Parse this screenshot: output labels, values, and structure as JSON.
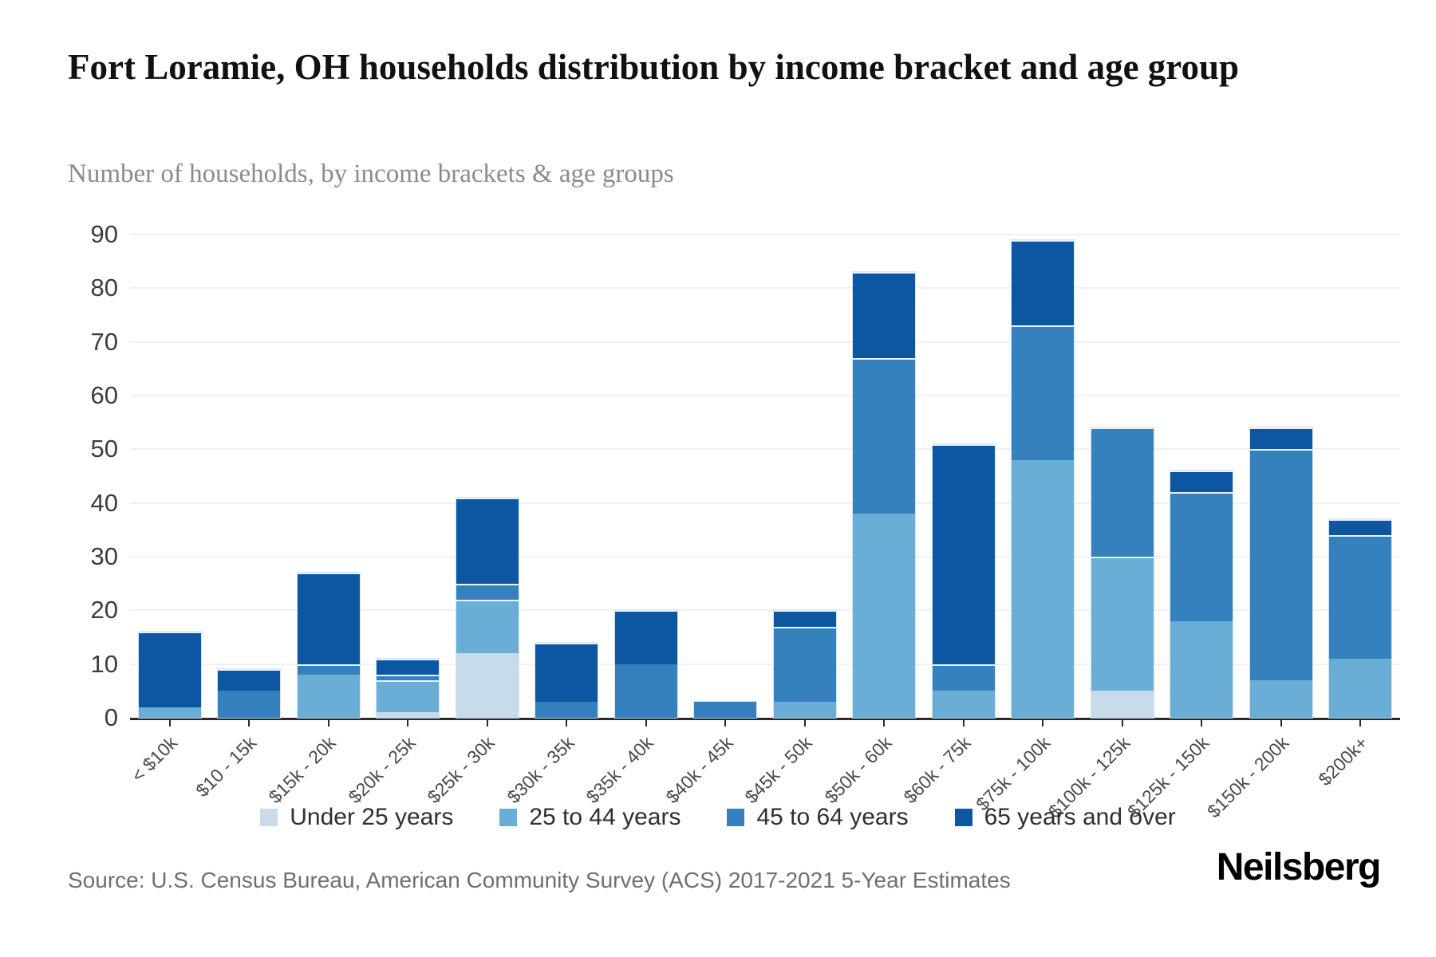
{
  "header": {
    "title": "Fort Loramie, OH households distribution by income bracket and age group",
    "subtitle": "Number of households, by income brackets & age groups"
  },
  "chart_data": {
    "type": "bar",
    "stacked": true,
    "grid": true,
    "legend_position": "bottom",
    "ylim": [
      0,
      90
    ],
    "yticks": [
      0,
      10,
      20,
      30,
      40,
      50,
      60,
      70,
      80,
      90
    ],
    "categories": [
      "< $10k",
      "$10 - 15k",
      "$15k - 20k",
      "$20k - 25k",
      "$25k - 30k",
      "$30k - 35k",
      "$35k - 40k",
      "$40k - 45k",
      "$45k - 50k",
      "$50k - 60k",
      "$60k - 75k",
      "$75k - 100k",
      "$100k - 125k",
      "$125k - 150k",
      "$150k - 200k",
      "$200k+"
    ],
    "series": [
      {
        "name": "Under 25 years",
        "color": "#c7dbea",
        "values": [
          0,
          0,
          0,
          1,
          12,
          0,
          0,
          0,
          0,
          0,
          0,
          0,
          5,
          0,
          0,
          0
        ]
      },
      {
        "name": "25 to 44 years",
        "color": "#6aadd6",
        "values": [
          2,
          0,
          8,
          6,
          10,
          0,
          0,
          0,
          3,
          38,
          5,
          48,
          25,
          18,
          7,
          11
        ]
      },
      {
        "name": "45 to 64 years",
        "color": "#3581bd",
        "values": [
          0,
          5,
          2,
          1,
          3,
          3,
          10,
          3,
          14,
          29,
          5,
          25,
          24,
          24,
          43,
          23
        ]
      },
      {
        "name": "65 years and over",
        "color": "#0d57a2",
        "values": [
          14,
          4,
          17,
          3,
          16,
          11,
          10,
          0,
          3,
          16,
          41,
          16,
          0,
          4,
          4,
          3
        ]
      }
    ],
    "totals": [
      16,
      9,
      27,
      11,
      41,
      14,
      20,
      3,
      20,
      83,
      51,
      89,
      54,
      46,
      54,
      37
    ]
  },
  "footer": {
    "source": "Source: U.S. Census Bureau, American Community Survey (ACS) 2017-2021 5-Year Estimates",
    "brand": "Neilsberg"
  }
}
